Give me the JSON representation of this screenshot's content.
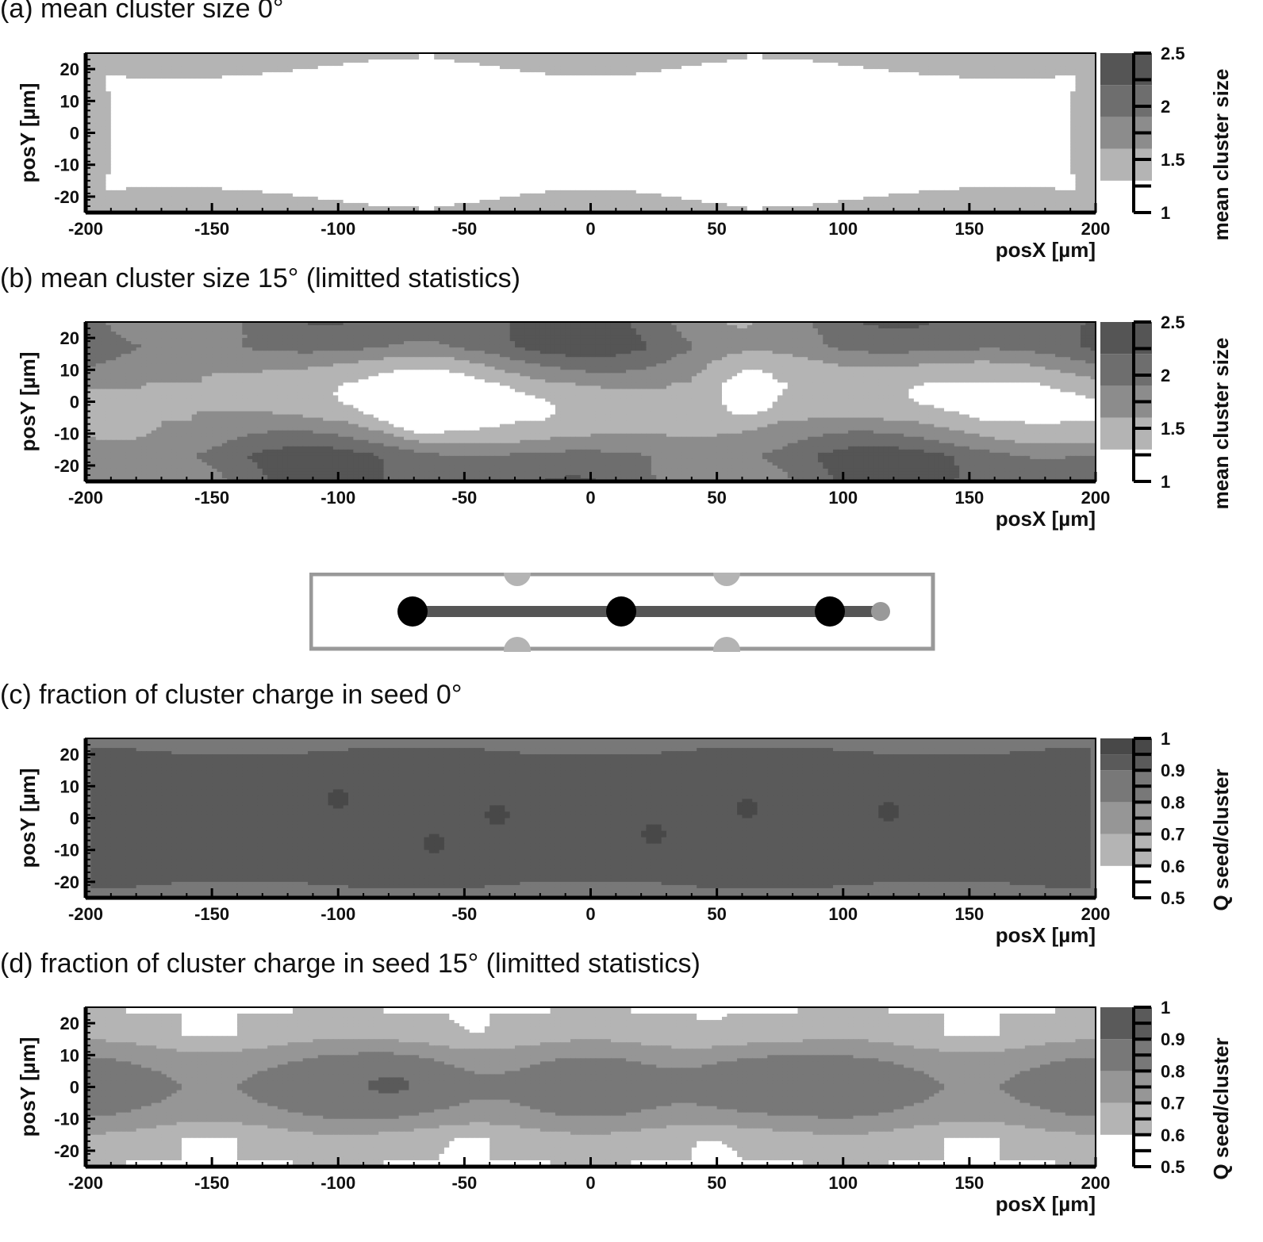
{
  "chart_data": [
    {
      "id": "a",
      "type": "heatmap",
      "title": "(a)  mean cluster size 0°",
      "xlabel": "posX [µm]",
      "ylabel": "posY [µm]",
      "xlim": [
        -200,
        200
      ],
      "ylim": [
        -25,
        25
      ],
      "xticks": [
        -200,
        -150,
        -100,
        -50,
        0,
        50,
        100,
        150,
        200
      ],
      "yticks": [
        -20,
        -10,
        0,
        10,
        20
      ],
      "zlabel": "mean cluster size",
      "zlim": [
        1,
        2.5
      ],
      "zticks": [
        1,
        1.5,
        2,
        2.5
      ],
      "levels": [
        1,
        1.3,
        1.6,
        1.9,
        2.2,
        2.5
      ],
      "level_colors": [
        "#ffffff",
        "#b4b4b4",
        "#8c8c8c",
        "#6e6e6e",
        "#555555"
      ],
      "features": {
        "background": 1,
        "edge_value": 1.45,
        "edge_width": 3.5,
        "edge_peaks_x": [
          -65,
          65
        ],
        "center_value": 1.0
      }
    },
    {
      "id": "b",
      "type": "heatmap",
      "title": "(b)  mean cluster size 15° (limitted statistics)",
      "xlabel": "posX [µm]",
      "ylabel": "posY [µm]",
      "xlim": [
        -200,
        200
      ],
      "ylim": [
        -25,
        25
      ],
      "xticks": [
        -200,
        -150,
        -100,
        -50,
        0,
        50,
        100,
        150,
        200
      ],
      "yticks": [
        -20,
        -10,
        0,
        10,
        20
      ],
      "zlabel": "mean cluster size",
      "zlim": [
        1,
        2.5
      ],
      "zticks": [
        1,
        1.5,
        2,
        2.5
      ],
      "levels": [
        1,
        1.3,
        1.6,
        1.9,
        2.2,
        2.5
      ],
      "level_colors": [
        "#ffffff",
        "#b4b4b4",
        "#8c8c8c",
        "#6e6e6e",
        "#555555"
      ],
      "features": {
        "center_value": 1.45,
        "edge_value": 2.0,
        "low_spots": [
          [
            -68,
            -3
          ],
          [
            62,
            2
          ]
        ]
      }
    },
    {
      "id": "c",
      "type": "heatmap",
      "title": "(c)  fraction of cluster charge in seed 0°",
      "xlabel": "posX [µm]",
      "ylabel": "posY [µm]",
      "xlim": [
        -200,
        200
      ],
      "ylim": [
        -25,
        25
      ],
      "xticks": [
        -200,
        -150,
        -100,
        -50,
        0,
        50,
        100,
        150,
        200
      ],
      "yticks": [
        -20,
        -10,
        0,
        10,
        20
      ],
      "zlabel": "Q seed/cluster",
      "zlim": [
        0.5,
        1
      ],
      "zticks": [
        0.5,
        0.6,
        0.7,
        0.8,
        0.9,
        1
      ],
      "levels": [
        0.5,
        0.6,
        0.7,
        0.8,
        0.9,
        0.95,
        1
      ],
      "level_colors": [
        "#ffffff",
        "#b4b4b4",
        "#969696",
        "#787878",
        "#5a5a5a",
        "#484848"
      ],
      "features": {
        "center_value": 0.92,
        "edge_value": 0.85
      }
    },
    {
      "id": "d",
      "type": "heatmap",
      "title": "(d)  fraction of cluster charge in seed 15° (limitted statistics)",
      "xlabel": "posX [µm]",
      "ylabel": "posY [µm]",
      "xlim": [
        -200,
        200
      ],
      "ylim": [
        -25,
        25
      ],
      "xticks": [
        -200,
        -150,
        -100,
        -50,
        0,
        50,
        100,
        150,
        200
      ],
      "yticks": [
        -20,
        -10,
        0,
        10,
        20
      ],
      "zlabel": "Q seed/cluster",
      "zlim": [
        0.5,
        1
      ],
      "zticks": [
        0.5,
        0.6,
        0.7,
        0.8,
        0.9,
        1
      ],
      "levels": [
        0.5,
        0.6,
        0.7,
        0.8,
        0.9,
        1
      ],
      "level_colors": [
        "#ffffff",
        "#b4b4b4",
        "#969696",
        "#787878",
        "#5a5a5a"
      ],
      "features": {
        "center_value": 0.83,
        "edge_value": 0.65,
        "high_spots": [
          [
            -70,
            2
          ],
          [
            62,
            2
          ]
        ]
      }
    }
  ],
  "schematic": {
    "frame_color": "#999999",
    "line_color": "#555555",
    "pillar_color": "#000000",
    "small_pillar_color": "#999999"
  }
}
